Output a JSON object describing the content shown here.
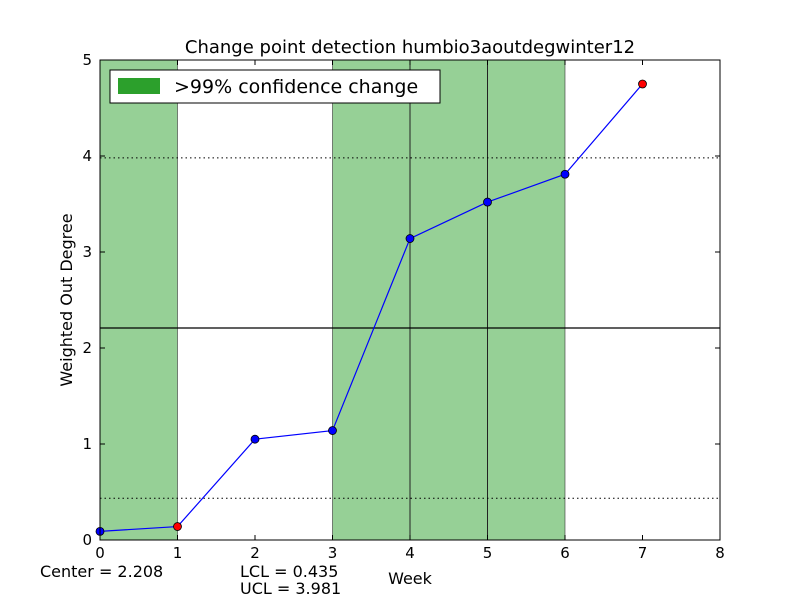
{
  "chart_data": {
    "type": "line",
    "title": "Change point detection humbio3aoutdegwinter12",
    "xlabel": "Week",
    "ylabel": "Weighted Out Degree",
    "xlim": [
      0,
      8
    ],
    "ylim": [
      0,
      5
    ],
    "x_ticks": [
      0,
      1,
      2,
      3,
      4,
      5,
      6,
      7,
      8
    ],
    "y_ticks": [
      0,
      1,
      2,
      3,
      4,
      5
    ],
    "grid": false,
    "legend_location": "top-left",
    "legend": [
      {
        "label": ">99% confidence change",
        "color": "#2ca02c"
      }
    ],
    "series": [
      {
        "x": [
          0,
          1,
          2,
          3,
          4,
          5,
          6,
          7
        ],
        "y": [
          0.09,
          0.14,
          1.05,
          1.14,
          3.14,
          3.52,
          3.81,
          4.75
        ],
        "color": "#0000ff",
        "marker_colors": [
          "#0000ff",
          "#ff0000",
          "#0000ff",
          "#0000ff",
          "#0000ff",
          "#0000ff",
          "#0000ff",
          "#ff0000"
        ]
      }
    ],
    "change_regions": [
      {
        "x_start": 0,
        "x_end": 1,
        "color": "#96d096"
      },
      {
        "x_start": 3,
        "x_end": 6,
        "color": "#96d096"
      }
    ],
    "change_lines": [
      4,
      5
    ],
    "center_line": 2.208,
    "lcl": 0.435,
    "ucl": 3.981,
    "annotations": {
      "center": "Center = 2.208",
      "lcl": "LCL = 0.435",
      "ucl": "UCL = 3.981"
    }
  }
}
